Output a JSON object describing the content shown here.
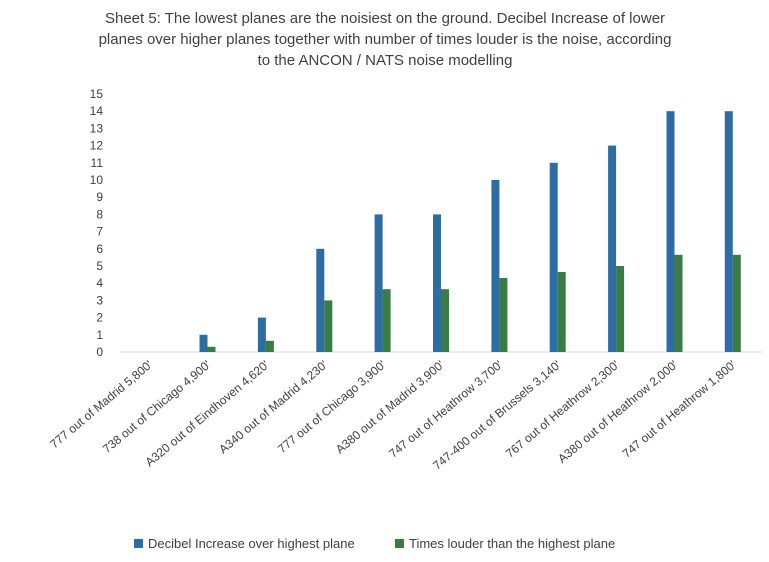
{
  "chart_data": {
    "type": "bar",
    "title_lines": [
      "Sheet 5: The lowest planes are the noisiest on the ground. Decibel Increase of lower",
      "planes over higher planes together with number of times louder is the noise, according",
      "to the ANCON / NATS noise modelling"
    ],
    "categories": [
      "777 out of Madrid 5,800'",
      "738 out of Chicago 4,900'",
      "A320 out of Eindhoven 4,620'",
      "A340 out of Madrid 4,230'",
      "777 out of Chicago 3,900'",
      "A380 out of Madrid 3,900'",
      "747 out of Heathrow 3,700'",
      "747-400 out of Brussels 3,140'",
      "767 out of Heathrow 2,300'",
      "A380 out of Heathrow 2,000'",
      "747 out of Heathrow 1,800'"
    ],
    "series": [
      {
        "name": "Decibel Increase over highest plane",
        "color": "#2e6da4",
        "values": [
          0,
          1,
          2,
          6,
          8,
          8,
          10,
          11,
          12,
          14,
          14
        ]
      },
      {
        "name": "Times louder than the highest plane",
        "color": "#3a7d44",
        "values": [
          0,
          0.3,
          0.65,
          3,
          3.65,
          3.65,
          4.3,
          4.65,
          5,
          5.65,
          5.65
        ]
      }
    ],
    "yticks": [
      "0",
      "1",
      "2",
      "3",
      "4",
      "5",
      "6",
      "7",
      "8",
      "9",
      "10",
      "11",
      "12",
      "13",
      "14",
      "15"
    ],
    "ylim": [
      0,
      15
    ],
    "grid": false,
    "legend_position": "bottom"
  }
}
